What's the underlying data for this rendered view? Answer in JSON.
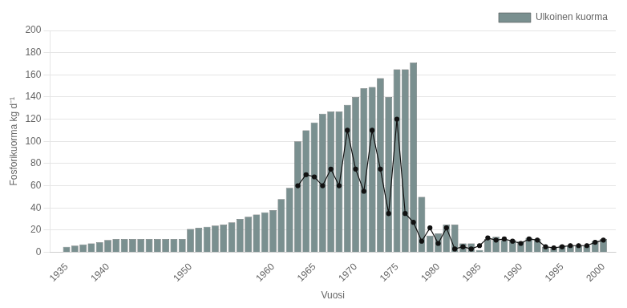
{
  "chart_data": {
    "type": "bar",
    "xlabel": "Vuosi",
    "ylabel": "Fosforikuorma kg d⁻¹",
    "xlim": [
      1933,
      2001.5
    ],
    "xticks": [
      1935,
      1940,
      1950,
      1960,
      1965,
      1970,
      1975,
      1980,
      1985,
      1990,
      1995,
      2000
    ],
    "ylim": [
      0,
      200
    ],
    "yticks": [
      0,
      20,
      40,
      60,
      80,
      100,
      120,
      140,
      160,
      180,
      200
    ],
    "grid": "y",
    "legend": "upper right",
    "series": [
      {
        "name": "Ulkoinen kuorma",
        "type": "bar",
        "color": "#7a9090",
        "x": [
          1935,
          1936,
          1937,
          1938,
          1939,
          1940,
          1941,
          1942,
          1943,
          1944,
          1945,
          1946,
          1947,
          1948,
          1949,
          1950,
          1951,
          1952,
          1953,
          1954,
          1955,
          1956,
          1957,
          1958,
          1959,
          1960,
          1961,
          1962,
          1963,
          1964,
          1965,
          1966,
          1967,
          1968,
          1969,
          1970,
          1971,
          1972,
          1973,
          1974,
          1975,
          1976,
          1977,
          1978,
          1979,
          1980,
          1981,
          1982,
          1983,
          1984,
          1985,
          1986,
          1987,
          1988,
          1989,
          1990,
          1991,
          1992,
          1993,
          1994,
          1995,
          1996,
          1997,
          1998,
          1999,
          2000
        ],
        "values": [
          5,
          6,
          7,
          8,
          9,
          11,
          12,
          12,
          12,
          12,
          12,
          12,
          12,
          12,
          12,
          21,
          22,
          23,
          24,
          25,
          27,
          30,
          32,
          34,
          36,
          38,
          48,
          58,
          100,
          110,
          117,
          125,
          127,
          127,
          133,
          140,
          148,
          149,
          157,
          140,
          165,
          165,
          171,
          50,
          15,
          17,
          25,
          25,
          8,
          8,
          2,
          12,
          14,
          11,
          11,
          10,
          13,
          12,
          5,
          5,
          6,
          6,
          6,
          6,
          10,
          12
        ]
      },
      {
        "type": "line",
        "color": "#111111",
        "marker": "circle",
        "x": [
          1963,
          1964,
          1965,
          1966,
          1967,
          1968,
          1969,
          1970,
          1971,
          1972,
          1973,
          1974,
          1975,
          1976,
          1977,
          1978,
          1979,
          1980,
          1981,
          1982,
          1983,
          1984,
          1985,
          1986,
          1987,
          1988,
          1989,
          1990,
          1991,
          1992,
          1993,
          1994,
          1995,
          1996,
          1997,
          1998,
          1999,
          2000
        ],
        "values": [
          60,
          70,
          68,
          60,
          75,
          60,
          110,
          75,
          55,
          110,
          75,
          35,
          120,
          35,
          27,
          10,
          22,
          8,
          22,
          3,
          5,
          3,
          6,
          13,
          11,
          12,
          10,
          8,
          12,
          11,
          5,
          4,
          5,
          6,
          6,
          6,
          9,
          11
        ]
      }
    ]
  }
}
